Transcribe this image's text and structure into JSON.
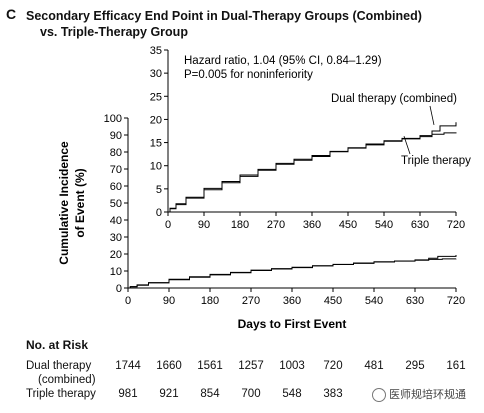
{
  "panel": "C",
  "title": [
    "Secondary Efficacy End Point in Dual-Therapy Groups (Combined)",
    "vs. Triple-Therapy Group"
  ],
  "annotation": [
    "Hazard ratio, 1.04 (95% CI, 0.84–1.29)",
    "P=0.005 for noninferiority"
  ],
  "chart_data": {
    "type": "line",
    "xlabel": "Days to First Event",
    "ylabel": [
      "Cumulative Incidence",
      "of Event (%)"
    ],
    "xlim": [
      0,
      720
    ],
    "x_ticks": [
      "0",
      "90",
      "180",
      "270",
      "360",
      "450",
      "540",
      "630",
      "720"
    ],
    "main_ylim": [
      0,
      100
    ],
    "main_y_ticks": [
      "0",
      "10",
      "20",
      "30",
      "40",
      "50",
      "60",
      "70",
      "80",
      "90",
      "100"
    ],
    "inset_ylim": [
      0,
      35
    ],
    "inset_y_ticks": [
      "0",
      "5",
      "10",
      "15",
      "20",
      "25",
      "30",
      "35"
    ],
    "series": [
      {
        "name": "Dual therapy (combined)",
        "x": [
          0,
          5,
          20,
          45,
          90,
          135,
          180,
          225,
          270,
          315,
          360,
          405,
          450,
          495,
          540,
          585,
          630,
          660,
          680,
          720
        ],
        "y": [
          0,
          0.8,
          1.8,
          3.2,
          5.1,
          6.6,
          8.0,
          9.2,
          10.5,
          11.4,
          12.2,
          13.1,
          13.8,
          14.5,
          15.3,
          15.8,
          16.5,
          17.5,
          18.6,
          19.4
        ]
      },
      {
        "name": "Triple therapy",
        "x": [
          0,
          5,
          20,
          45,
          90,
          135,
          180,
          225,
          270,
          315,
          360,
          405,
          450,
          495,
          540,
          585,
          630,
          660,
          690,
          720
        ],
        "y": [
          0,
          0.7,
          1.6,
          3.0,
          4.8,
          6.3,
          7.7,
          9.0,
          10.3,
          11.2,
          12.0,
          13.0,
          13.9,
          14.7,
          15.4,
          15.9,
          16.3,
          16.8,
          17.1,
          17.2
        ]
      }
    ]
  },
  "risk_table": {
    "title": "No. at Risk",
    "rows": [
      {
        "label": [
          "Dual therapy",
          "(combined)"
        ],
        "values": [
          "1744",
          "1660",
          "1561",
          "1257",
          "1003",
          "720",
          "481",
          "295",
          "161"
        ]
      },
      {
        "label": [
          "Triple therapy"
        ],
        "values": [
          "981",
          "921",
          "854",
          "700",
          "548",
          "383",
          "",
          "",
          ""
        ]
      }
    ]
  },
  "watermark": "医师规培环规通"
}
